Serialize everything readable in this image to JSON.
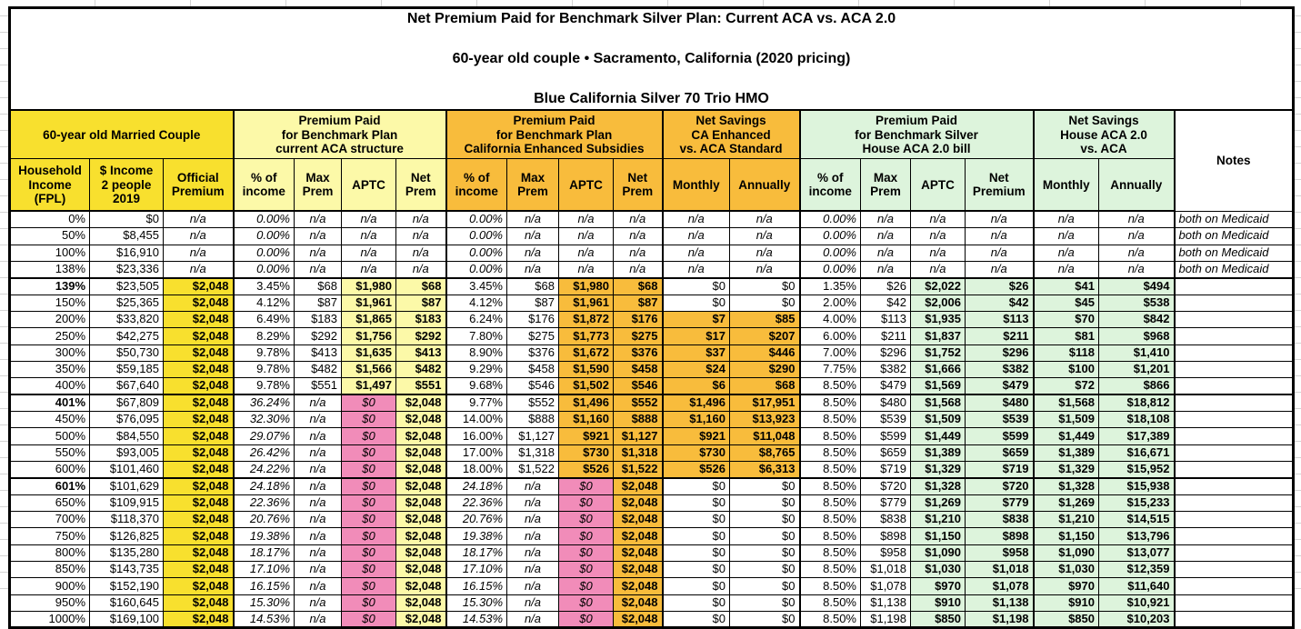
{
  "title": {
    "line1": "Net Premium Paid for Benchmark Silver Plan: Current ACA vs. ACA 2.0",
    "line2": "60-year old couple • Sacramento, California (2020 pricing)",
    "line3": "Blue California Silver 70 Trio HMO"
  },
  "colors": {
    "yellow": "#F8E02E",
    "paleyellow": "#FCF9A8",
    "orange": "#F8BC3C",
    "green": "#DDF4DC",
    "pink": "#F18CB9",
    "gridline": "#D4D4D4"
  },
  "header": {
    "groups": [
      {
        "label": "60-year old Married Couple",
        "color": "yellow",
        "cols": [
          "Household\nIncome\n(FPL)",
          "$ Income\n2 people\n2019",
          "Official\nPremium"
        ]
      },
      {
        "label": "Premium Paid\nfor Benchmark Plan\ncurrent ACA structure",
        "color": "paleyellow",
        "cols": [
          "% of\nincome",
          "Max\nPrem",
          "APTC",
          "Net\nPrem"
        ]
      },
      {
        "label": "Premium Paid\nfor Benchmark Plan\nCalifornia Enhanced Subsidies",
        "color": "orange",
        "cols": [
          "% of\nincome",
          "Max\nPrem",
          "APTC",
          "Net\nPrem"
        ]
      },
      {
        "label": "Net Savings\nCA Enhanced\nvs. ACA Standard",
        "color": "orange",
        "cols": [
          "Monthly",
          "Annually"
        ]
      },
      {
        "label": "Premium Paid\nfor Benchmark Silver\nHouse ACA 2.0 bill",
        "color": "green",
        "cols": [
          "% of\nincome",
          "Max\nPrem",
          "APTC",
          "Net\nPremium"
        ]
      },
      {
        "label": "Net Savings\nHouse ACA 2.0\nvs. ACA",
        "color": "green",
        "cols": [
          "Monthly",
          "Annually"
        ]
      },
      {
        "label": "Notes",
        "color": "white",
        "cols": []
      }
    ]
  },
  "rows": [
    {
      "fpl": "0%",
      "bold": false,
      "band": "medicaid",
      "income": "$0",
      "official": "n/a",
      "aca": [
        "0.00%",
        "n/a",
        "n/a",
        "n/a"
      ],
      "ca": [
        "0.00%",
        "n/a",
        "n/a",
        "n/a"
      ],
      "ca_save": [
        "n/a",
        "n/a"
      ],
      "house": [
        "0.00%",
        "n/a",
        "n/a",
        "n/a"
      ],
      "house_save": [
        "n/a",
        "n/a"
      ],
      "notes": "both on Medicaid"
    },
    {
      "fpl": "50%",
      "bold": false,
      "band": "medicaid",
      "income": "$8,455",
      "official": "n/a",
      "aca": [
        "0.00%",
        "n/a",
        "n/a",
        "n/a"
      ],
      "ca": [
        "0.00%",
        "n/a",
        "n/a",
        "n/a"
      ],
      "ca_save": [
        "n/a",
        "n/a"
      ],
      "house": [
        "0.00%",
        "n/a",
        "n/a",
        "n/a"
      ],
      "house_save": [
        "n/a",
        "n/a"
      ],
      "notes": "both on Medicaid"
    },
    {
      "fpl": "100%",
      "bold": false,
      "band": "medicaid",
      "income": "$16,910",
      "official": "n/a",
      "aca": [
        "0.00%",
        "n/a",
        "n/a",
        "n/a"
      ],
      "ca": [
        "0.00%",
        "n/a",
        "n/a",
        "n/a"
      ],
      "ca_save": [
        "n/a",
        "n/a"
      ],
      "house": [
        "0.00%",
        "n/a",
        "n/a",
        "n/a"
      ],
      "house_save": [
        "n/a",
        "n/a"
      ],
      "notes": "both on Medicaid"
    },
    {
      "fpl": "138%",
      "bold": false,
      "band": "medicaid",
      "income": "$23,336",
      "official": "n/a",
      "aca": [
        "0.00%",
        "n/a",
        "n/a",
        "n/a"
      ],
      "ca": [
        "0.00%",
        "n/a",
        "n/a",
        "n/a"
      ],
      "ca_save": [
        "n/a",
        "n/a"
      ],
      "house": [
        "0.00%",
        "n/a",
        "n/a",
        "n/a"
      ],
      "house_save": [
        "n/a",
        "n/a"
      ],
      "notes": "both on Medicaid"
    },
    {
      "fpl": "139%",
      "bold": true,
      "band": "subsidized",
      "income": "$23,505",
      "official": "$2,048",
      "aca": [
        "3.45%",
        "$68",
        "$1,980",
        "$68"
      ],
      "ca": [
        "3.45%",
        "$68",
        "$1,980",
        "$68"
      ],
      "ca_save": [
        "$0",
        "$0"
      ],
      "house": [
        "1.35%",
        "$26",
        "$2,022",
        "$26"
      ],
      "house_save": [
        "$41",
        "$494"
      ],
      "notes": ""
    },
    {
      "fpl": "150%",
      "bold": false,
      "band": "subsidized",
      "income": "$25,365",
      "official": "$2,048",
      "aca": [
        "4.12%",
        "$87",
        "$1,961",
        "$87"
      ],
      "ca": [
        "4.12%",
        "$87",
        "$1,961",
        "$87"
      ],
      "ca_save": [
        "$0",
        "$0"
      ],
      "house": [
        "2.00%",
        "$42",
        "$2,006",
        "$42"
      ],
      "house_save": [
        "$45",
        "$538"
      ],
      "notes": ""
    },
    {
      "fpl": "200%",
      "bold": false,
      "band": "subsidized",
      "income": "$33,820",
      "official": "$2,048",
      "aca": [
        "6.49%",
        "$183",
        "$1,865",
        "$183"
      ],
      "ca": [
        "6.24%",
        "$176",
        "$1,872",
        "$176"
      ],
      "ca_save": [
        "$7",
        "$85"
      ],
      "house": [
        "4.00%",
        "$113",
        "$1,935",
        "$113"
      ],
      "house_save": [
        "$70",
        "$842"
      ],
      "notes": ""
    },
    {
      "fpl": "250%",
      "bold": false,
      "band": "subsidized",
      "income": "$42,275",
      "official": "$2,048",
      "aca": [
        "8.29%",
        "$292",
        "$1,756",
        "$292"
      ],
      "ca": [
        "7.80%",
        "$275",
        "$1,773",
        "$275"
      ],
      "ca_save": [
        "$17",
        "$207"
      ],
      "house": [
        "6.00%",
        "$211",
        "$1,837",
        "$211"
      ],
      "house_save": [
        "$81",
        "$968"
      ],
      "notes": ""
    },
    {
      "fpl": "300%",
      "bold": false,
      "band": "subsidized",
      "income": "$50,730",
      "official": "$2,048",
      "aca": [
        "9.78%",
        "$413",
        "$1,635",
        "$413"
      ],
      "ca": [
        "8.90%",
        "$376",
        "$1,672",
        "$376"
      ],
      "ca_save": [
        "$37",
        "$446"
      ],
      "house": [
        "7.00%",
        "$296",
        "$1,752",
        "$296"
      ],
      "house_save": [
        "$118",
        "$1,410"
      ],
      "notes": ""
    },
    {
      "fpl": "350%",
      "bold": false,
      "band": "subsidized",
      "income": "$59,185",
      "official": "$2,048",
      "aca": [
        "9.78%",
        "$482",
        "$1,566",
        "$482"
      ],
      "ca": [
        "9.29%",
        "$458",
        "$1,590",
        "$458"
      ],
      "ca_save": [
        "$24",
        "$290"
      ],
      "house": [
        "7.75%",
        "$382",
        "$1,666",
        "$382"
      ],
      "house_save": [
        "$100",
        "$1,201"
      ],
      "notes": ""
    },
    {
      "fpl": "400%",
      "bold": false,
      "band": "subsidized",
      "income": "$67,640",
      "official": "$2,048",
      "aca": [
        "9.78%",
        "$551",
        "$1,497",
        "$551"
      ],
      "ca": [
        "9.68%",
        "$546",
        "$1,502",
        "$546"
      ],
      "ca_save": [
        "$6",
        "$68"
      ],
      "house": [
        "8.50%",
        "$479",
        "$1,569",
        "$479"
      ],
      "house_save": [
        "$72",
        "$866"
      ],
      "notes": ""
    },
    {
      "fpl": "401%",
      "bold": true,
      "band": "ca_only",
      "income": "$67,809",
      "official": "$2,048",
      "aca": [
        "36.24%",
        "n/a",
        "$0",
        "$2,048"
      ],
      "ca": [
        "9.77%",
        "$552",
        "$1,496",
        "$552"
      ],
      "ca_save": [
        "$1,496",
        "$17,951"
      ],
      "house": [
        "8.50%",
        "$480",
        "$1,568",
        "$480"
      ],
      "house_save": [
        "$1,568",
        "$18,812"
      ],
      "notes": ""
    },
    {
      "fpl": "450%",
      "bold": false,
      "band": "ca_only",
      "income": "$76,095",
      "official": "$2,048",
      "aca": [
        "32.30%",
        "n/a",
        "$0",
        "$2,048"
      ],
      "ca": [
        "14.00%",
        "$888",
        "$1,160",
        "$888"
      ],
      "ca_save": [
        "$1,160",
        "$13,923"
      ],
      "house": [
        "8.50%",
        "$539",
        "$1,509",
        "$539"
      ],
      "house_save": [
        "$1,509",
        "$18,108"
      ],
      "notes": ""
    },
    {
      "fpl": "500%",
      "bold": false,
      "band": "ca_only",
      "income": "$84,550",
      "official": "$2,048",
      "aca": [
        "29.07%",
        "n/a",
        "$0",
        "$2,048"
      ],
      "ca": [
        "16.00%",
        "$1,127",
        "$921",
        "$1,127"
      ],
      "ca_save": [
        "$921",
        "$11,048"
      ],
      "house": [
        "8.50%",
        "$599",
        "$1,449",
        "$599"
      ],
      "house_save": [
        "$1,449",
        "$17,389"
      ],
      "notes": ""
    },
    {
      "fpl": "550%",
      "bold": false,
      "band": "ca_only",
      "income": "$93,005",
      "official": "$2,048",
      "aca": [
        "26.42%",
        "n/a",
        "$0",
        "$2,048"
      ],
      "ca": [
        "17.00%",
        "$1,318",
        "$730",
        "$1,318"
      ],
      "ca_save": [
        "$730",
        "$8,765"
      ],
      "house": [
        "8.50%",
        "$659",
        "$1,389",
        "$659"
      ],
      "house_save": [
        "$1,389",
        "$16,671"
      ],
      "notes": ""
    },
    {
      "fpl": "600%",
      "bold": false,
      "band": "ca_only",
      "income": "$101,460",
      "official": "$2,048",
      "aca": [
        "24.22%",
        "n/a",
        "$0",
        "$2,048"
      ],
      "ca": [
        "18.00%",
        "$1,522",
        "$526",
        "$1,522"
      ],
      "ca_save": [
        "$526",
        "$6,313"
      ],
      "house": [
        "8.50%",
        "$719",
        "$1,329",
        "$719"
      ],
      "house_save": [
        "$1,329",
        "$15,952"
      ],
      "notes": ""
    },
    {
      "fpl": "601%",
      "bold": true,
      "band": "none",
      "income": "$101,629",
      "official": "$2,048",
      "aca": [
        "24.18%",
        "n/a",
        "$0",
        "$2,048"
      ],
      "ca": [
        "24.18%",
        "n/a",
        "$0",
        "$2,048"
      ],
      "ca_save": [
        "$0",
        "$0"
      ],
      "house": [
        "8.50%",
        "$720",
        "$1,328",
        "$720"
      ],
      "house_save": [
        "$1,328",
        "$15,938"
      ],
      "notes": ""
    },
    {
      "fpl": "650%",
      "bold": false,
      "band": "none",
      "income": "$109,915",
      "official": "$2,048",
      "aca": [
        "22.36%",
        "n/a",
        "$0",
        "$2,048"
      ],
      "ca": [
        "22.36%",
        "n/a",
        "$0",
        "$2,048"
      ],
      "ca_save": [
        "$0",
        "$0"
      ],
      "house": [
        "8.50%",
        "$779",
        "$1,269",
        "$779"
      ],
      "house_save": [
        "$1,269",
        "$15,233"
      ],
      "notes": ""
    },
    {
      "fpl": "700%",
      "bold": false,
      "band": "none",
      "income": "$118,370",
      "official": "$2,048",
      "aca": [
        "20.76%",
        "n/a",
        "$0",
        "$2,048"
      ],
      "ca": [
        "20.76%",
        "n/a",
        "$0",
        "$2,048"
      ],
      "ca_save": [
        "$0",
        "$0"
      ],
      "house": [
        "8.50%",
        "$838",
        "$1,210",
        "$838"
      ],
      "house_save": [
        "$1,210",
        "$14,515"
      ],
      "notes": ""
    },
    {
      "fpl": "750%",
      "bold": false,
      "band": "none",
      "income": "$126,825",
      "official": "$2,048",
      "aca": [
        "19.38%",
        "n/a",
        "$0",
        "$2,048"
      ],
      "ca": [
        "19.38%",
        "n/a",
        "$0",
        "$2,048"
      ],
      "ca_save": [
        "$0",
        "$0"
      ],
      "house": [
        "8.50%",
        "$898",
        "$1,150",
        "$898"
      ],
      "house_save": [
        "$1,150",
        "$13,796"
      ],
      "notes": ""
    },
    {
      "fpl": "800%",
      "bold": false,
      "band": "none",
      "income": "$135,280",
      "official": "$2,048",
      "aca": [
        "18.17%",
        "n/a",
        "$0",
        "$2,048"
      ],
      "ca": [
        "18.17%",
        "n/a",
        "$0",
        "$2,048"
      ],
      "ca_save": [
        "$0",
        "$0"
      ],
      "house": [
        "8.50%",
        "$958",
        "$1,090",
        "$958"
      ],
      "house_save": [
        "$1,090",
        "$13,077"
      ],
      "notes": ""
    },
    {
      "fpl": "850%",
      "bold": false,
      "band": "none",
      "income": "$143,735",
      "official": "$2,048",
      "aca": [
        "17.10%",
        "n/a",
        "$0",
        "$2,048"
      ],
      "ca": [
        "17.10%",
        "n/a",
        "$0",
        "$2,048"
      ],
      "ca_save": [
        "$0",
        "$0"
      ],
      "house": [
        "8.50%",
        "$1,018",
        "$1,030",
        "$1,018"
      ],
      "house_save": [
        "$1,030",
        "$12,359"
      ],
      "notes": ""
    },
    {
      "fpl": "900%",
      "bold": false,
      "band": "none",
      "income": "$152,190",
      "official": "$2,048",
      "aca": [
        "16.15%",
        "n/a",
        "$0",
        "$2,048"
      ],
      "ca": [
        "16.15%",
        "n/a",
        "$0",
        "$2,048"
      ],
      "ca_save": [
        "$0",
        "$0"
      ],
      "house": [
        "8.50%",
        "$1,078",
        "$970",
        "$1,078"
      ],
      "house_save": [
        "$970",
        "$11,640"
      ],
      "notes": ""
    },
    {
      "fpl": "950%",
      "bold": false,
      "band": "none",
      "income": "$160,645",
      "official": "$2,048",
      "aca": [
        "15.30%",
        "n/a",
        "$0",
        "$2,048"
      ],
      "ca": [
        "15.30%",
        "n/a",
        "$0",
        "$2,048"
      ],
      "ca_save": [
        "$0",
        "$0"
      ],
      "house": [
        "8.50%",
        "$1,138",
        "$910",
        "$1,138"
      ],
      "house_save": [
        "$910",
        "$10,921"
      ],
      "notes": ""
    },
    {
      "fpl": "1000%",
      "bold": false,
      "band": "none",
      "income": "$169,100",
      "official": "$2,048",
      "aca": [
        "14.53%",
        "n/a",
        "$0",
        "$2,048"
      ],
      "ca": [
        "14.53%",
        "n/a",
        "$0",
        "$2,048"
      ],
      "ca_save": [
        "$0",
        "$0"
      ],
      "house": [
        "8.50%",
        "$1,198",
        "$850",
        "$1,198"
      ],
      "house_save": [
        "$850",
        "$10,203"
      ],
      "notes": ""
    }
  ]
}
